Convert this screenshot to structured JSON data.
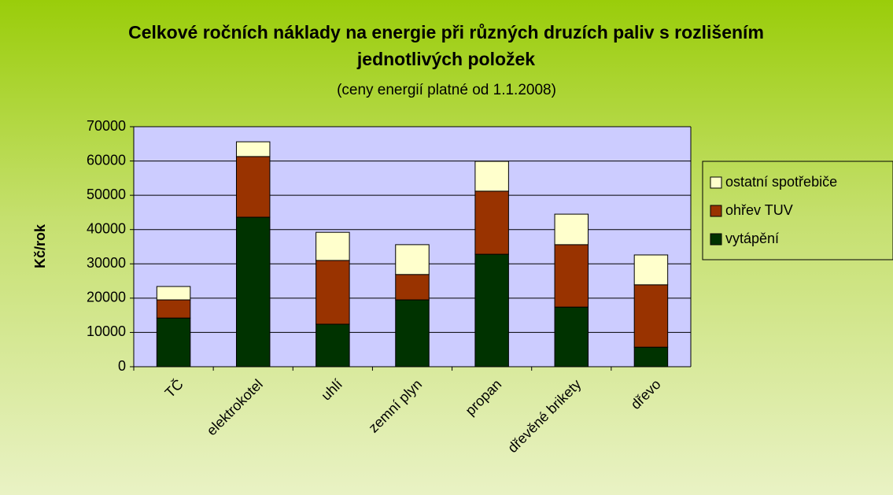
{
  "chart_data": {
    "type": "stacked_bar",
    "title": "Celkové ročních náklady na energie při různých druzích paliv s rozlišením jednotlivých položek",
    "subtitle": "(ceny energií platné od 1.1.2008)",
    "y_label": "Kč/rok",
    "categories": [
      "TČ",
      "elektrokotel",
      "uhlí",
      "zemní plyn",
      "propan",
      "dřevěné brikety",
      "dřevo"
    ],
    "series": [
      {
        "name": "vytápění",
        "color": "#003300",
        "values": [
          14200,
          43600,
          12400,
          19500,
          32800,
          17400,
          5700
        ]
      },
      {
        "name": "ohřev TUV",
        "color": "#993300",
        "values": [
          5300,
          17700,
          18600,
          7400,
          18400,
          18200,
          18200
        ]
      },
      {
        "name": "ostatní spotřebiče",
        "color": "#ffffcc",
        "values": [
          3900,
          4300,
          8200,
          8700,
          8700,
          8900,
          8700
        ]
      }
    ],
    "ylim": [
      0,
      70000
    ],
    "yticks": [
      0,
      10000,
      20000,
      30000,
      40000,
      50000,
      60000,
      70000
    ],
    "grid": true,
    "legend": "right"
  }
}
